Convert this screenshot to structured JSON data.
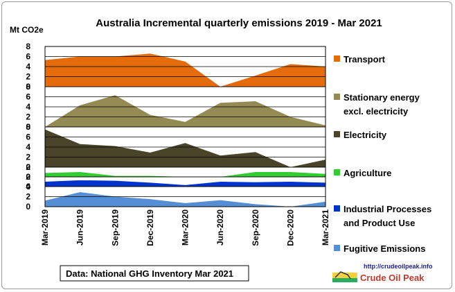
{
  "chart_data": {
    "type": "area",
    "title": "Australia Incremental quarterly emissions 2019 - Mar 2021",
    "ylabel": "Mt CO2e",
    "categories": [
      "Mar-2019",
      "Jun-2019",
      "Sep-2019",
      "Dec-2019",
      "Mar-2020",
      "Jun-2020",
      "Sep-2020",
      "Dec-2020",
      "Mar-2021"
    ],
    "panels": [
      {
        "name": "Transport",
        "legend": [
          "Transport"
        ],
        "color": "#e46c0a",
        "ticks": [
          "8",
          "6",
          "4",
          "2",
          "0"
        ],
        "ylim": [
          0,
          8
        ],
        "values": [
          5.3,
          6.0,
          6.0,
          6.6,
          5.0,
          0.0,
          2.2,
          4.5,
          4.0
        ]
      },
      {
        "name": "Stationary energy excl. electricity",
        "legend": [
          "Stationary energy",
          "excl. electricity"
        ],
        "color": "#948a54",
        "ticks": [
          "8",
          "6",
          "4",
          "2",
          "0"
        ],
        "ylim": [
          0,
          8
        ],
        "values": [
          0.0,
          4.3,
          6.3,
          2.4,
          1.0,
          4.8,
          5.1,
          2.0,
          0.3
        ]
      },
      {
        "name": "Electricity",
        "legend": [
          "Electricity"
        ],
        "color": "#4a452a",
        "ticks": [
          "8",
          "6",
          "4",
          "2",
          "0"
        ],
        "ylim": [
          0,
          8
        ],
        "values": [
          7.5,
          4.6,
          4.2,
          2.9,
          4.8,
          2.3,
          3.0,
          0.0,
          1.5
        ]
      },
      {
        "name": "Agriculture",
        "legend": [
          "Agriculture"
        ],
        "color": "#33cc33",
        "ticks": [
          "2",
          "0"
        ],
        "ylim": [
          0,
          2
        ],
        "values": [
          0.8,
          1.0,
          0.2,
          0.2,
          0.0,
          0.0,
          1.0,
          1.0,
          0.6
        ]
      },
      {
        "name": "Industrial Processes and Product Use",
        "legend": [
          "Industrial Processes",
          "and Product Use"
        ],
        "color": "#0033cc",
        "ticks": [
          "2",
          "0"
        ],
        "ylim": [
          0,
          2
        ],
        "values": [
          1.0,
          1.3,
          1.2,
          0.8,
          0.3,
          1.0,
          0.9,
          1.0,
          0.8
        ]
      },
      {
        "name": "Fugitive Emissions",
        "legend": [
          "Fugitive Emissions"
        ],
        "color": "#558ed5",
        "ticks": [
          "4",
          "2",
          "0"
        ],
        "ylim": [
          0,
          4
        ],
        "values": [
          1.2,
          2.9,
          2.0,
          1.5,
          0.7,
          1.3,
          0.5,
          0.0,
          1.0
        ]
      }
    ]
  },
  "source_note": "Data: National GHG Inventory Mar 2021",
  "logo": {
    "url": "http://crudeoilpeak.info",
    "name": "Crude Oil Peak"
  }
}
